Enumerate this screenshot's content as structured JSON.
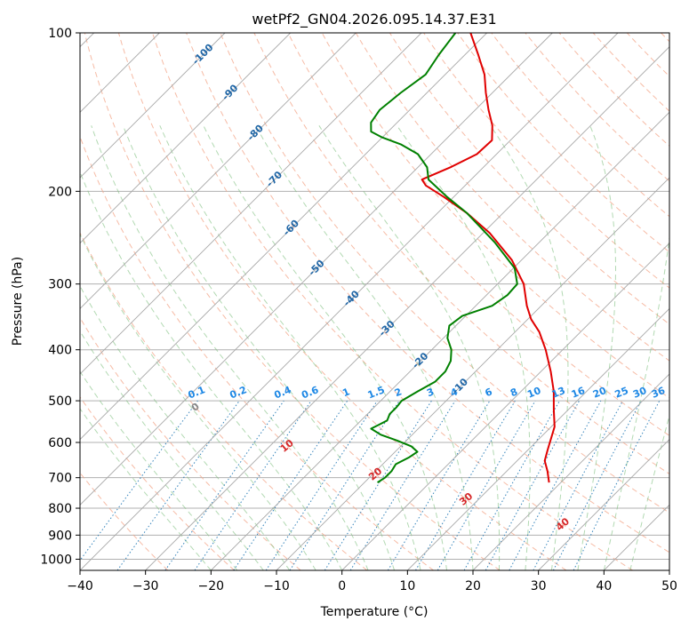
{
  "chart_data": {
    "type": "line",
    "title": "wetPf2_GN04.2026.095.14.37.E31",
    "xlabel": "Temperature (°C)",
    "ylabel": "Pressure (hPa)",
    "xlim": [
      -40,
      50
    ],
    "ylim": [
      1050,
      100
    ],
    "y_scale": "log",
    "skew": true,
    "grid": true,
    "x_ticks": [
      -40,
      -30,
      -20,
      -10,
      0,
      10,
      20,
      30,
      40,
      50
    ],
    "y_ticks": [
      100,
      200,
      300,
      400,
      500,
      600,
      700,
      800,
      900,
      1000
    ],
    "isotherm_labels": [
      "-100",
      "-90",
      "-80",
      "-70",
      "-60",
      "-50",
      "-40",
      "-30",
      "-20",
      "-10"
    ],
    "dry_adiabat_labels": [
      "0",
      "10",
      "20",
      "30",
      "40"
    ],
    "mixing_ratio_labels": [
      "0.1",
      "0.2",
      "0.4",
      "0.6",
      "1",
      "1.5",
      "2",
      "3",
      "4",
      "6",
      "8",
      "10",
      "13",
      "16",
      "20",
      "25",
      "30",
      "36"
    ],
    "series": [
      {
        "color": "#e00000",
        "points": [
          {
            "p": 715,
            "t": 18.2
          },
          {
            "p": 680,
            "t": 16.2
          },
          {
            "p": 650,
            "t": 14.2
          },
          {
            "p": 620,
            "t": 13.0
          },
          {
            "p": 600,
            "t": 12.2
          },
          {
            "p": 560,
            "t": 10.5
          },
          {
            "p": 520,
            "t": 7.8
          },
          {
            "p": 480,
            "t": 5.0
          },
          {
            "p": 440,
            "t": 1.5
          },
          {
            "p": 400,
            "t": -2.6
          },
          {
            "p": 370,
            "t": -6.3
          },
          {
            "p": 350,
            "t": -9.5
          },
          {
            "p": 330,
            "t": -12.2
          },
          {
            "p": 300,
            "t": -16.0
          },
          {
            "p": 270,
            "t": -21.5
          },
          {
            "p": 240,
            "t": -29.0
          },
          {
            "p": 220,
            "t": -35.5
          },
          {
            "p": 205,
            "t": -41.5
          },
          {
            "p": 195,
            "t": -46.0
          },
          {
            "p": 190,
            "t": -47.5
          },
          {
            "p": 180,
            "t": -45.0
          },
          {
            "p": 170,
            "t": -43.0
          },
          {
            "p": 160,
            "t": -42.8
          },
          {
            "p": 150,
            "t": -45.0
          },
          {
            "p": 140,
            "t": -48.0
          },
          {
            "p": 130,
            "t": -51.0
          },
          {
            "p": 120,
            "t": -54.0
          },
          {
            "p": 110,
            "t": -58.0
          },
          {
            "p": 100,
            "t": -62.5
          }
        ]
      },
      {
        "color": "#008000",
        "points": [
          {
            "p": 715,
            "t": -8.0
          },
          {
            "p": 700,
            "t": -7.6
          },
          {
            "p": 680,
            "t": -7.6
          },
          {
            "p": 660,
            "t": -8.0
          },
          {
            "p": 640,
            "t": -7.0
          },
          {
            "p": 625,
            "t": -6.6
          },
          {
            "p": 610,
            "t": -8.4
          },
          {
            "p": 595,
            "t": -11.4
          },
          {
            "p": 580,
            "t": -14.8
          },
          {
            "p": 565,
            "t": -17.2
          },
          {
            "p": 555,
            "t": -16.6
          },
          {
            "p": 545,
            "t": -16.0
          },
          {
            "p": 530,
            "t": -16.6
          },
          {
            "p": 515,
            "t": -16.6
          },
          {
            "p": 500,
            "t": -16.8
          },
          {
            "p": 480,
            "t": -15.8
          },
          {
            "p": 460,
            "t": -14.6
          },
          {
            "p": 440,
            "t": -14.6
          },
          {
            "p": 420,
            "t": -15.4
          },
          {
            "p": 400,
            "t": -17.0
          },
          {
            "p": 380,
            "t": -19.4
          },
          {
            "p": 360,
            "t": -21.0
          },
          {
            "p": 345,
            "t": -20.5
          },
          {
            "p": 330,
            "t": -17.5
          },
          {
            "p": 315,
            "t": -16.8
          },
          {
            "p": 300,
            "t": -17.0
          },
          {
            "p": 280,
            "t": -19.8
          },
          {
            "p": 250,
            "t": -26.8
          },
          {
            "p": 220,
            "t": -35.5
          },
          {
            "p": 205,
            "t": -41.0
          },
          {
            "p": 190,
            "t": -46.5
          },
          {
            "p": 180,
            "t": -48.6
          },
          {
            "p": 170,
            "t": -52.0
          },
          {
            "p": 163,
            "t": -56.0
          },
          {
            "p": 158,
            "t": -60.0
          },
          {
            "p": 154,
            "t": -62.6
          },
          {
            "p": 148,
            "t": -64.0
          },
          {
            "p": 140,
            "t": -64.6
          },
          {
            "p": 130,
            "t": -64.0
          },
          {
            "p": 120,
            "t": -63.0
          },
          {
            "p": 110,
            "t": -64.0
          },
          {
            "p": 100,
            "t": -64.8
          }
        ]
      }
    ]
  }
}
